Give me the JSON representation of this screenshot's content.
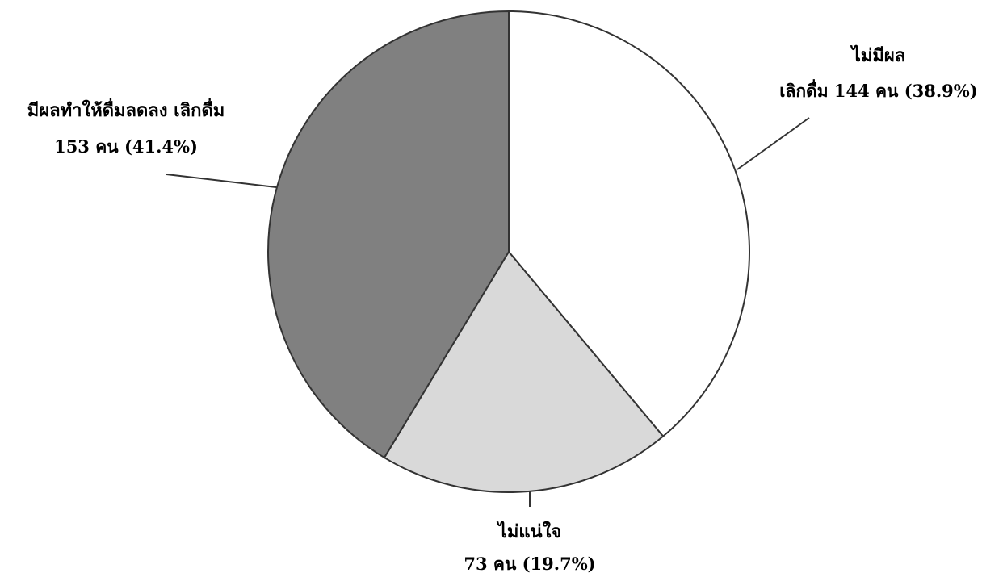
{
  "chart_data": {
    "type": "pie",
    "title": "",
    "slices": [
      {
        "label_line1": "ไม่มีผล",
        "label_line2": "เลิกดื่ม 144 คน (38.9%)",
        "count": 144,
        "percent": 38.9,
        "color": "#ffffff"
      },
      {
        "label_line1": "ไม่แน่ใจ",
        "label_line2": "73 คน (19.7%)",
        "count": 73,
        "percent": 19.7,
        "color": "#d9d9d9"
      },
      {
        "label_line1": "มีผลทำให้ดื่มลดลง เลิกดื่ม",
        "label_line2": "153 คน (41.4%)",
        "count": 153,
        "percent": 41.4,
        "color": "#808080"
      }
    ],
    "start_angle_deg": 0,
    "direction": "clockwise",
    "outline_color": "#333333"
  }
}
